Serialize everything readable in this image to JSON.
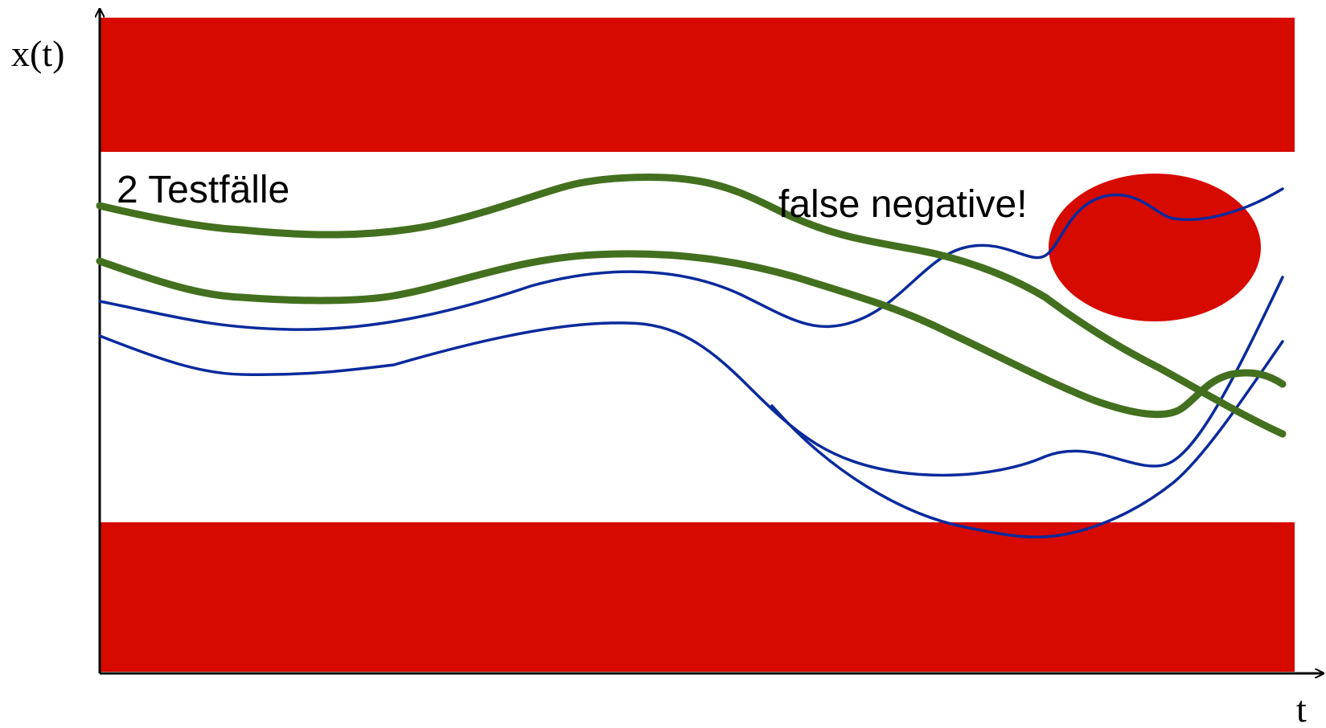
{
  "labels": {
    "y_axis": "x(t)",
    "x_axis": "t",
    "test_cases": "2 Testfälle",
    "false_negative": "false negative!"
  },
  "colors": {
    "forbidden_region": "#d70a00",
    "test_case_curve": "#43701f",
    "trajectory_curve": "#0a2a9c",
    "axis": "#000000",
    "background": "#ffffff"
  }
}
